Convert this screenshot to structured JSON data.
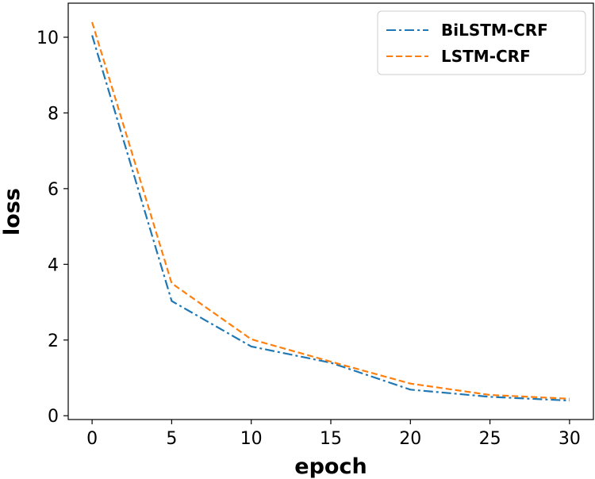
{
  "chart_data": {
    "type": "line",
    "title": "",
    "xlabel": "epoch",
    "ylabel": "loss",
    "xlim": [
      -1.5,
      31.5
    ],
    "ylim": [
      -0.1,
      10.9
    ],
    "xticks": [
      "0",
      "5",
      "10",
      "15",
      "20",
      "25",
      "30"
    ],
    "yticks": [
      "0",
      "2",
      "4",
      "6",
      "8",
      "10"
    ],
    "grid": false,
    "legend_position": "top-right",
    "x": [
      0,
      5,
      10,
      15,
      20,
      25,
      30
    ],
    "series": [
      {
        "name": "BiLSTM-CRF",
        "style": "dash-dot",
        "color": "#1f77b4",
        "values": [
          10.05,
          3.03,
          1.83,
          1.4,
          0.69,
          0.5,
          0.4
        ]
      },
      {
        "name": "LSTM-CRF",
        "style": "dashed",
        "color": "#ff7f0e",
        "values": [
          10.4,
          3.5,
          2.02,
          1.43,
          0.85,
          0.55,
          0.45
        ]
      }
    ]
  }
}
